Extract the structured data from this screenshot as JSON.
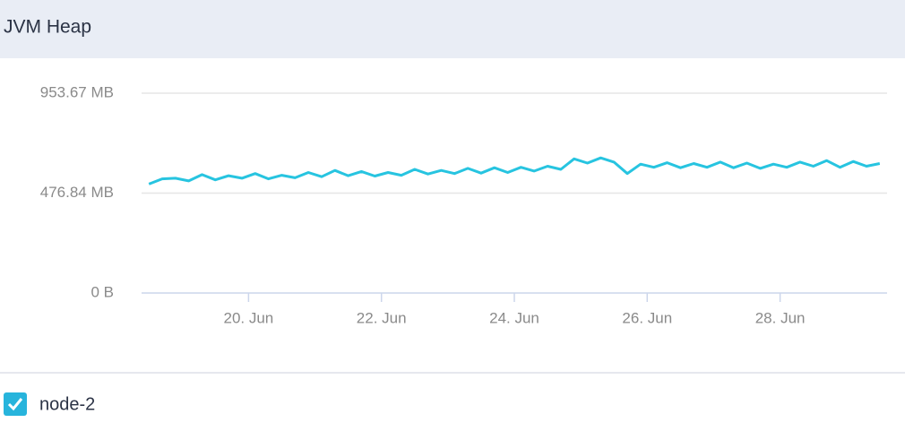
{
  "chart_data": {
    "type": "line",
    "title": "JVM Heap",
    "x": [
      18.5,
      18.7,
      18.9,
      19.1,
      19.3,
      19.5,
      19.7,
      19.9,
      20.1,
      20.3,
      20.5,
      20.7,
      20.9,
      21.1,
      21.3,
      21.5,
      21.7,
      21.9,
      22.1,
      22.3,
      22.5,
      22.7,
      22.9,
      23.1,
      23.3,
      23.5,
      23.7,
      23.9,
      24.1,
      24.3,
      24.5,
      24.7,
      24.9,
      25.1,
      25.3,
      25.5,
      25.7,
      25.9,
      26.1,
      26.3,
      26.5,
      26.7,
      26.9,
      27.1,
      27.3,
      27.5,
      27.7,
      27.9,
      28.1,
      28.3,
      28.5,
      28.7,
      28.9,
      29.1,
      29.3,
      29.5
    ],
    "series": [
      {
        "name": "node-2",
        "color": "#27c4e0",
        "values": [
          520,
          545,
          548,
          535,
          565,
          540,
          560,
          548,
          570,
          545,
          562,
          550,
          575,
          555,
          585,
          560,
          580,
          558,
          575,
          562,
          590,
          568,
          585,
          570,
          595,
          572,
          598,
          575,
          600,
          582,
          605,
          590,
          640,
          620,
          645,
          625,
          570,
          615,
          600,
          622,
          598,
          618,
          600,
          625,
          598,
          620,
          595,
          615,
          600,
          625,
          605,
          632,
          600,
          628,
          605,
          618
        ]
      }
    ],
    "xlim": [
      18.39,
      29.61
    ],
    "xticks": [
      {
        "value": 20,
        "label": "20. Jun"
      },
      {
        "value": 22,
        "label": "22. Jun"
      },
      {
        "value": 24,
        "label": "24. Jun"
      },
      {
        "value": 26,
        "label": "26. Jun"
      },
      {
        "value": 28,
        "label": "28. Jun"
      }
    ],
    "ylim": [
      0,
      953.67
    ],
    "yticks": [
      {
        "value": 0,
        "label": "0 B"
      },
      {
        "value": 476.84,
        "label": "476.84 MB"
      },
      {
        "value": 953.67,
        "label": "953.67 MB"
      }
    ],
    "grid": true
  }
}
